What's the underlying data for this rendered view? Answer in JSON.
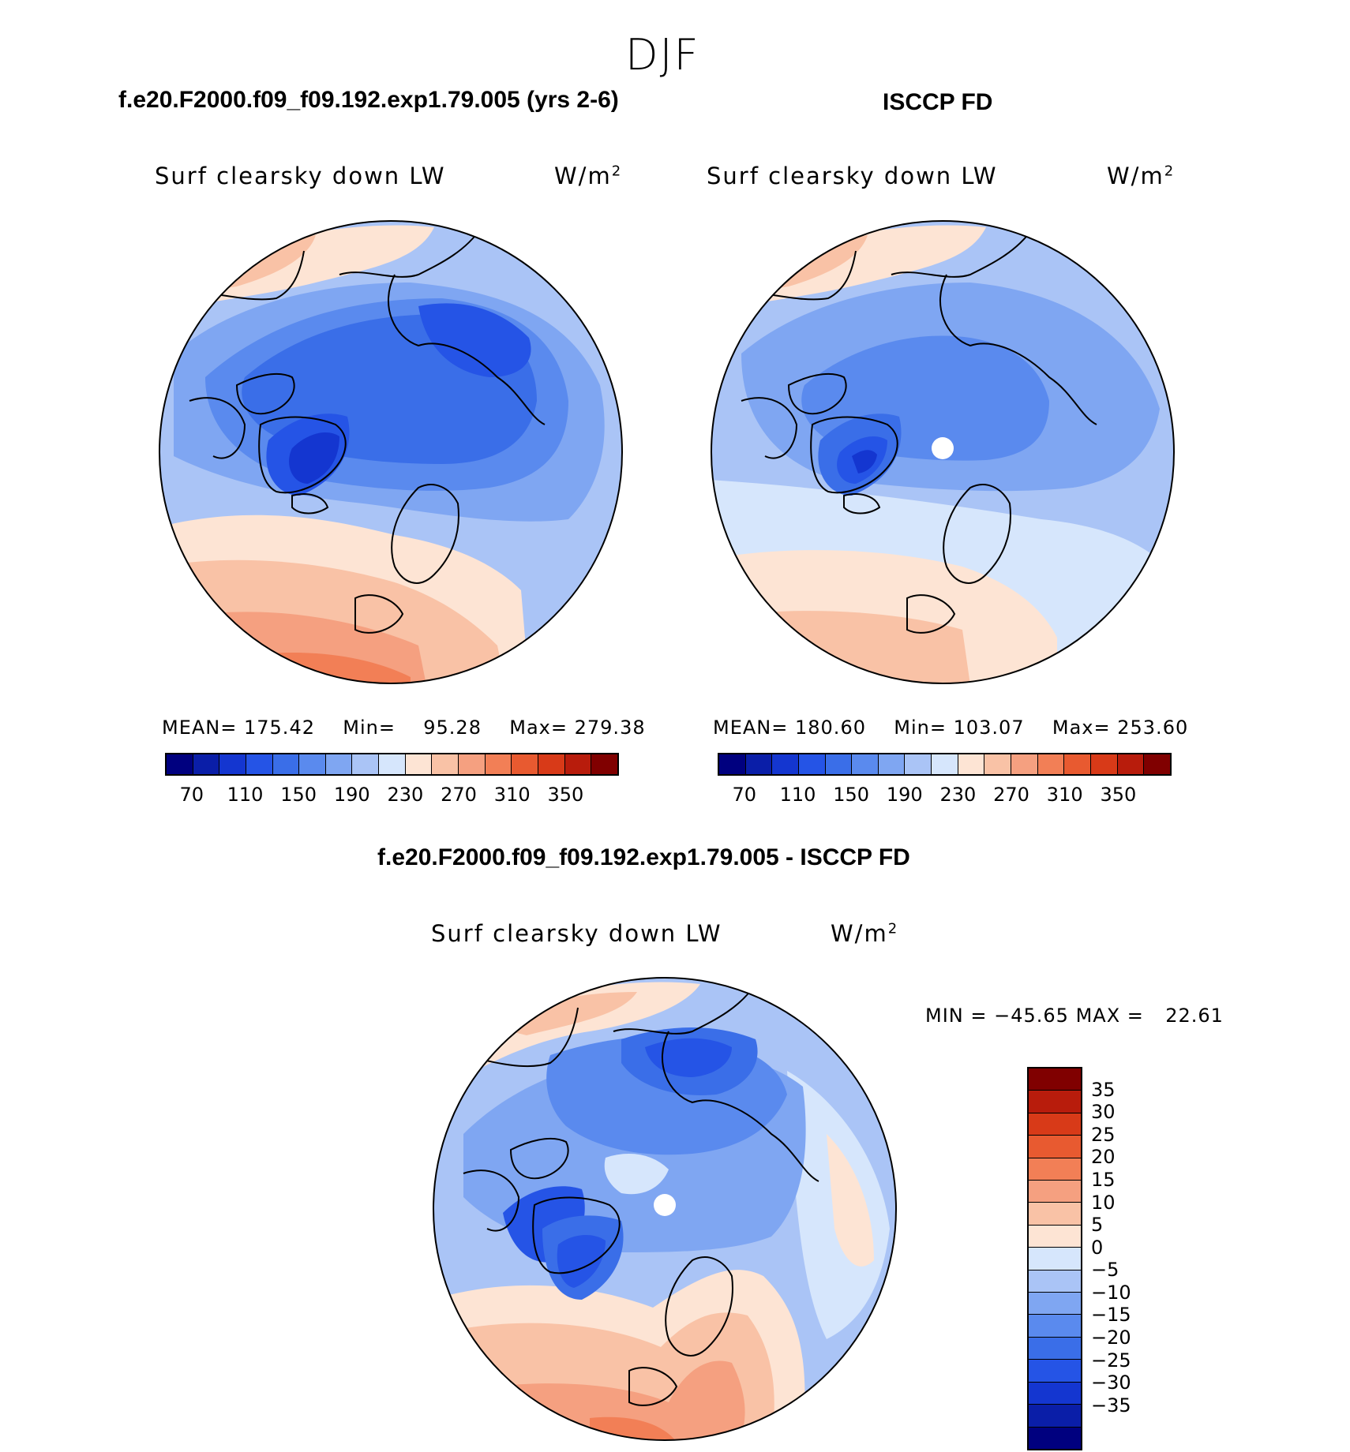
{
  "figure": {
    "season": "DJF",
    "colors": {
      "scale": [
        "#00007f",
        "#0a1ea8",
        "#1436d0",
        "#2554e6",
        "#3a6ee8",
        "#5a8aee",
        "#7fa6f2",
        "#aac4f6",
        "#d6e6fc",
        "#fde4d4",
        "#f9c2a6",
        "#f5a080",
        "#f27f56",
        "#e85a30",
        "#d83a18",
        "#b81c0c",
        "#800000"
      ],
      "coast": "#000000",
      "pole_hole": "#ffffff"
    }
  },
  "panels": [
    {
      "title": "f.e20.F2000.f09_f09.192.exp1.79.005 (yrs 2-6)",
      "variable": "Surf clearsky down LW",
      "units_base": "W/m",
      "units_exp": "2",
      "stats": {
        "mean_label": "MEAN=",
        "mean": "175.42",
        "min_label": "Min=",
        "min": "95.28",
        "max_label": "Max=",
        "max": "279.38"
      },
      "colorbar_ticks": [
        "70",
        "110",
        "150",
        "190",
        "230",
        "270",
        "310",
        "350"
      ]
    },
    {
      "title": "ISCCP FD",
      "variable": "Surf clearsky down LW",
      "units_base": "W/m",
      "units_exp": "2",
      "stats": {
        "mean_label": "MEAN=",
        "mean": "180.60",
        "min_label": "Min=",
        "min": "103.07",
        "max_label": "Max=",
        "max": "253.60"
      },
      "colorbar_ticks": [
        "70",
        "110",
        "150",
        "190",
        "230",
        "270",
        "310",
        "350"
      ]
    },
    {
      "title": "f.e20.F2000.f09_f09.192.exp1.79.005 - ISCCP FD",
      "variable": "Surf clearsky down LW",
      "units_base": "W/m",
      "units_exp": "2",
      "stats": {
        "min_label": "MIN =",
        "min": "−45.65",
        "max_label": "MAX =",
        "max": "22.61"
      },
      "colorbar_ticks": [
        "35",
        "30",
        "25",
        "20",
        "15",
        "10",
        "5",
        "0",
        "−5",
        "−10",
        "−15",
        "−20",
        "−25",
        "−30",
        "−35"
      ]
    }
  ],
  "chart_data": [
    {
      "type": "heatmap",
      "title": "f.e20.F2000.f09_f09.192.exp1.79.005 (yrs 2-6)",
      "variable": "Surf clearsky down LW",
      "units": "W/m2",
      "projection": "north polar stereographic",
      "mean": 175.42,
      "min": 95.28,
      "max": 279.38,
      "levels": [
        70,
        90,
        110,
        130,
        150,
        170,
        190,
        210,
        230,
        250,
        270,
        290,
        310,
        330,
        350
      ]
    },
    {
      "type": "heatmap",
      "title": "ISCCP FD",
      "variable": "Surf clearsky down LW",
      "units": "W/m2",
      "projection": "north polar stereographic",
      "mean": 180.6,
      "min": 103.07,
      "max": 253.6,
      "levels": [
        70,
        90,
        110,
        130,
        150,
        170,
        190,
        210,
        230,
        250,
        270,
        290,
        310,
        330,
        350
      ]
    },
    {
      "type": "heatmap",
      "title": "f.e20.F2000.f09_f09.192.exp1.79.005 - ISCCP FD",
      "variable": "Surf clearsky down LW",
      "units": "W/m2",
      "projection": "north polar stereographic",
      "min": -45.65,
      "max": 22.61,
      "levels": [
        -35,
        -30,
        -25,
        -20,
        -15,
        -10,
        -5,
        0,
        5,
        10,
        15,
        20,
        25,
        30,
        35
      ]
    }
  ]
}
